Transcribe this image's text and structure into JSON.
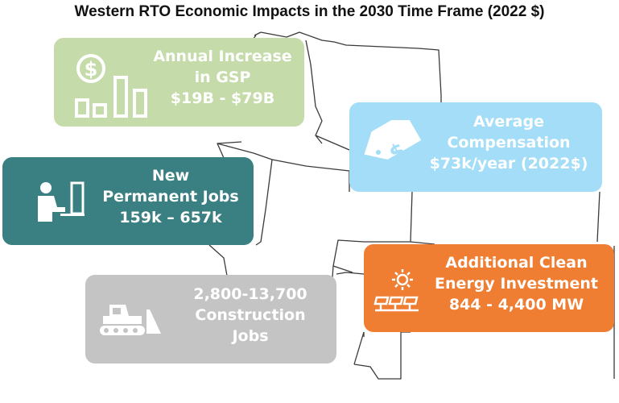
{
  "title": "Western RTO Economic Impacts in the 2030 Time Frame (2022 $)",
  "cards": {
    "gsp": {
      "line1": "Annual Increase",
      "line2": "in GSP",
      "line3": "$19B - $79B",
      "color": "#c5dcaa",
      "icon": "dollar-bar-chart-icon"
    },
    "compensation": {
      "line1": "Average",
      "line2": "Compensation",
      "line3": "$73k/year (2022$)",
      "color": "#a3ddf7",
      "icon": "price-tag-icon"
    },
    "jobs": {
      "line1": "New",
      "line2": "Permanent Jobs",
      "line3": "159k – 657k",
      "color": "#3a7f82",
      "icon": "worker-computer-icon"
    },
    "construction": {
      "line1": "2,800-13,700",
      "line2": "Construction",
      "line3": "Jobs",
      "color": "#c4c4c4",
      "icon": "bulldozer-icon"
    },
    "clean_energy": {
      "line1": "Additional Clean",
      "line2": "Energy Investment",
      "line3": "844 - 4,400 MW",
      "color": "#ef7d32",
      "icon": "solar-panels-icon"
    }
  }
}
